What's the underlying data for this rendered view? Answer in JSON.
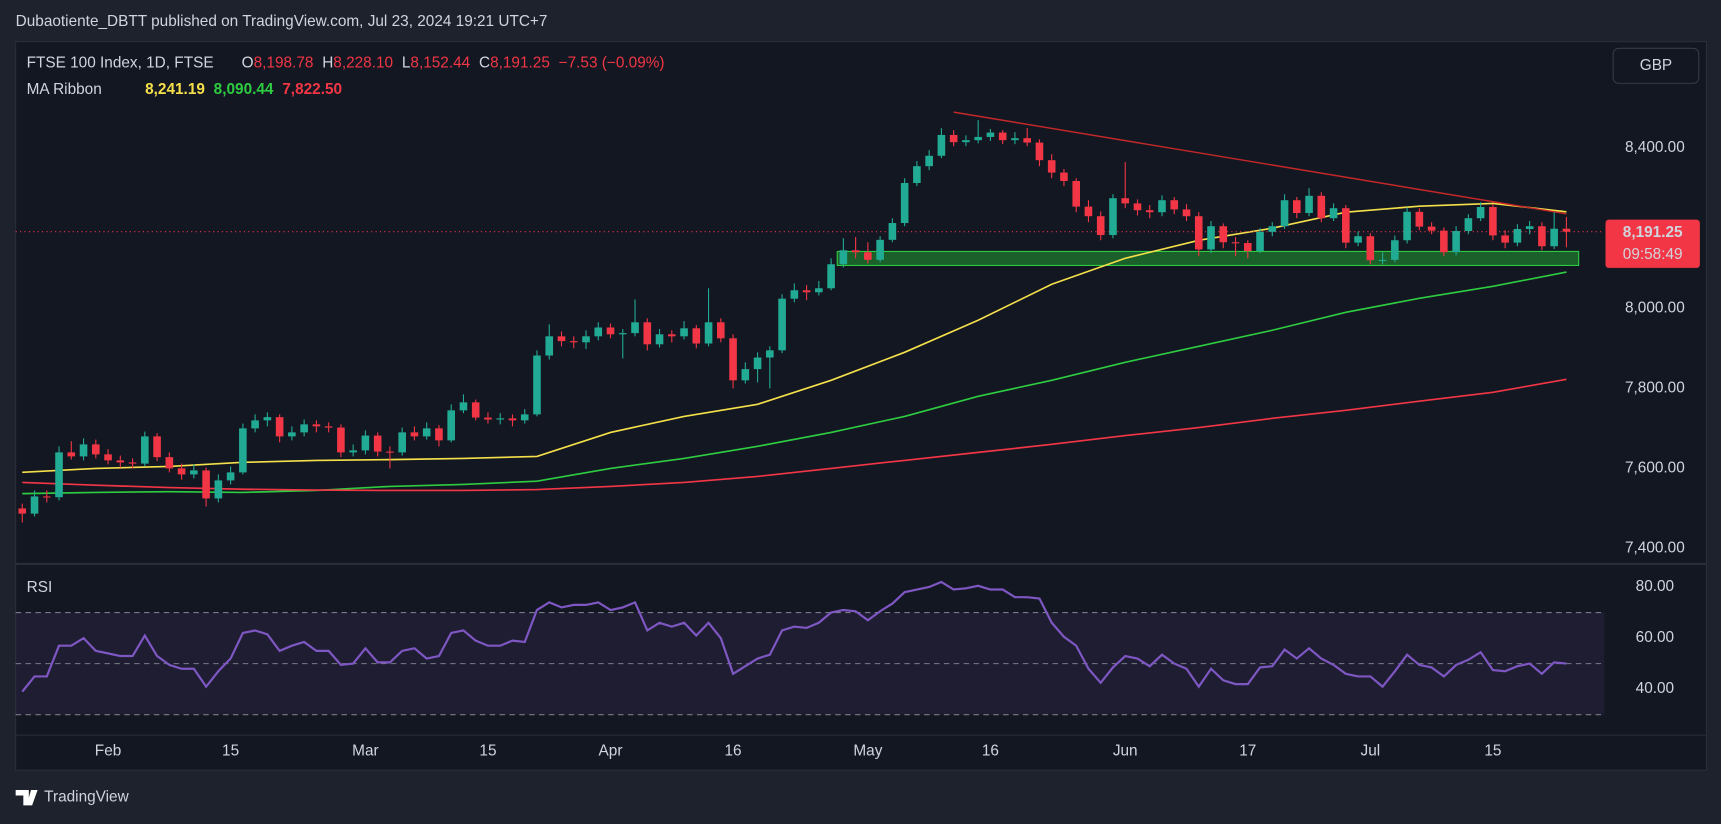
{
  "header": {
    "publisher": "Dubaotiente_DBTT published on TradingView.com, Jul 23, 2024 19:21 UTC+7",
    "logo": "TradingView"
  },
  "chart_data": [
    {
      "type": "candlestick",
      "title": "FTSE 100 Index, 1D, FTSE",
      "legend_ohlc": [
        {
          "key": "O",
          "value": "8,198.78"
        },
        {
          "key": "H",
          "value": "8,228.10"
        },
        {
          "key": "L",
          "value": "8,152.44"
        },
        {
          "key": "C",
          "value": "8,191.25"
        }
      ],
      "change": "−7.53 (−0.09%)",
      "currency": "GBP",
      "overlay_name": "MA Ribbon",
      "up_color": "#22ab94",
      "down_color": "#f23645",
      "ohlc": [
        [
          7500,
          7512,
          7465,
          7487
        ],
        [
          7487,
          7545,
          7480,
          7530
        ],
        [
          7530,
          7545,
          7515,
          7528
        ],
        [
          7528,
          7655,
          7520,
          7640
        ],
        [
          7640,
          7668,
          7622,
          7630
        ],
        [
          7630,
          7675,
          7620,
          7660
        ],
        [
          7660,
          7672,
          7625,
          7635
        ],
        [
          7635,
          7648,
          7610,
          7620
        ],
        [
          7620,
          7632,
          7602,
          7615
        ],
        [
          7615,
          7625,
          7600,
          7612
        ],
        [
          7612,
          7692,
          7605,
          7680
        ],
        [
          7680,
          7688,
          7618,
          7628
        ],
        [
          7628,
          7640,
          7590,
          7600
        ],
        [
          7600,
          7612,
          7572,
          7585
        ],
        [
          7585,
          7610,
          7575,
          7595
        ],
        [
          7595,
          7602,
          7505,
          7525
        ],
        [
          7525,
          7585,
          7515,
          7570
        ],
        [
          7570,
          7605,
          7560,
          7590
        ],
        [
          7590,
          7712,
          7585,
          7700
        ],
        [
          7700,
          7735,
          7690,
          7720
        ],
        [
          7720,
          7740,
          7705,
          7728
        ],
        [
          7728,
          7735,
          7665,
          7680
        ],
        [
          7680,
          7705,
          7670,
          7690
        ],
        [
          7690,
          7722,
          7680,
          7710
        ],
        [
          7710,
          7720,
          7690,
          7705
        ],
        [
          7705,
          7715,
          7690,
          7702
        ],
        [
          7702,
          7710,
          7628,
          7640
        ],
        [
          7640,
          7660,
          7630,
          7645
        ],
        [
          7645,
          7695,
          7635,
          7682
        ],
        [
          7682,
          7690,
          7630,
          7642
        ],
        [
          7642,
          7655,
          7600,
          7640
        ],
        [
          7640,
          7702,
          7632,
          7690
        ],
        [
          7690,
          7705,
          7670,
          7680
        ],
        [
          7680,
          7715,
          7672,
          7700
        ],
        [
          7700,
          7708,
          7655,
          7670
        ],
        [
          7670,
          7760,
          7665,
          7745
        ],
        [
          7745,
          7785,
          7738,
          7765
        ],
        [
          7765,
          7772,
          7720,
          7727
        ],
        [
          7727,
          7740,
          7712,
          7722
        ],
        [
          7722,
          7738,
          7710,
          7725
        ],
        [
          7725,
          7735,
          7705,
          7720
        ],
        [
          7720,
          7748,
          7712,
          7735
        ],
        [
          7735,
          7895,
          7730,
          7882
        ],
        [
          7882,
          7960,
          7872,
          7930
        ],
        [
          7930,
          7942,
          7905,
          7918
        ],
        [
          7918,
          7930,
          7900,
          7915
        ],
        [
          7915,
          7945,
          7898,
          7930
        ],
        [
          7930,
          7965,
          7920,
          7952
        ],
        [
          7952,
          7962,
          7925,
          7935
        ],
        [
          7935,
          7948,
          7875,
          7938
        ],
        [
          7938,
          8022,
          7930,
          7965
        ],
        [
          7965,
          7975,
          7895,
          7910
        ],
        [
          7910,
          7948,
          7902,
          7935
        ],
        [
          7935,
          7945,
          7915,
          7930
        ],
        [
          7930,
          7968,
          7922,
          7950
        ],
        [
          7950,
          7958,
          7900,
          7912
        ],
        [
          7912,
          8050,
          7905,
          7965
        ],
        [
          7965,
          7975,
          7915,
          7925
        ],
        [
          7925,
          7935,
          7800,
          7820
        ],
        [
          7820,
          7865,
          7812,
          7848
        ],
        [
          7848,
          7890,
          7815,
          7877
        ],
        [
          7877,
          7905,
          7800,
          7895
        ],
        [
          7895,
          8035,
          7888,
          8024
        ],
        [
          8024,
          8062,
          8015,
          8045
        ],
        [
          8045,
          8058,
          8020,
          8040
        ],
        [
          8040,
          8068,
          8032,
          8050
        ],
        [
          8050,
          8125,
          8045,
          8110
        ],
        [
          8110,
          8175,
          8102,
          8145
        ],
        [
          8145,
          8178,
          8125,
          8140
        ],
        [
          8140,
          8165,
          8112,
          8121
        ],
        [
          8121,
          8180,
          8115,
          8171
        ],
        [
          8171,
          8225,
          8165,
          8213
        ],
        [
          8213,
          8325,
          8205,
          8313
        ],
        [
          8313,
          8368,
          8305,
          8355
        ],
        [
          8355,
          8395,
          8345,
          8381
        ],
        [
          8381,
          8450,
          8375,
          8433
        ],
        [
          8433,
          8445,
          8405,
          8415
        ],
        [
          8415,
          8432,
          8405,
          8420
        ],
        [
          8420,
          8470,
          8412,
          8428
        ],
        [
          8428,
          8448,
          8418,
          8439
        ],
        [
          8439,
          8445,
          8410,
          8420
        ],
        [
          8420,
          8440,
          8410,
          8425
        ],
        [
          8425,
          8450,
          8405,
          8414
        ],
        [
          8414,
          8422,
          8355,
          8370
        ],
        [
          8370,
          8385,
          8325,
          8339
        ],
        [
          8339,
          8348,
          8305,
          8318
        ],
        [
          8318,
          8325,
          8240,
          8254
        ],
        [
          8254,
          8270,
          8215,
          8230
        ],
        [
          8230,
          8242,
          8170,
          8183
        ],
        [
          8183,
          8285,
          8175,
          8275
        ],
        [
          8275,
          8365,
          8250,
          8262
        ],
        [
          8262,
          8272,
          8232,
          8245
        ],
        [
          8245,
          8258,
          8225,
          8240
        ],
        [
          8240,
          8282,
          8230,
          8270
        ],
        [
          8270,
          8278,
          8235,
          8247
        ],
        [
          8247,
          8260,
          8218,
          8230
        ],
        [
          8230,
          8240,
          8130,
          8147
        ],
        [
          8147,
          8218,
          8138,
          8205
        ],
        [
          8205,
          8212,
          8150,
          8165
        ],
        [
          8165,
          8178,
          8130,
          8163
        ],
        [
          8163,
          8170,
          8125,
          8143
        ],
        [
          8143,
          8200,
          8138,
          8191
        ],
        [
          8191,
          8215,
          8180,
          8205
        ],
        [
          8205,
          8285,
          8198,
          8270
        ],
        [
          8270,
          8278,
          8225,
          8238
        ],
        [
          8238,
          8300,
          8230,
          8281
        ],
        [
          8281,
          8290,
          8215,
          8225
        ],
        [
          8225,
          8262,
          8218,
          8250
        ],
        [
          8250,
          8258,
          8150,
          8164
        ],
        [
          8164,
          8192,
          8155,
          8180
        ],
        [
          8180,
          8188,
          8110,
          8120
        ],
        [
          8120,
          8140,
          8110,
          8121
        ],
        [
          8121,
          8182,
          8115,
          8170
        ],
        [
          8170,
          8252,
          8162,
          8241
        ],
        [
          8241,
          8250,
          8195,
          8204
        ],
        [
          8204,
          8215,
          8185,
          8194
        ],
        [
          8194,
          8202,
          8130,
          8140
        ],
        [
          8140,
          8205,
          8132,
          8193
        ],
        [
          8193,
          8235,
          8185,
          8225
        ],
        [
          8225,
          8265,
          8218,
          8253
        ],
        [
          8253,
          8260,
          8170,
          8182
        ],
        [
          8182,
          8195,
          8150,
          8164
        ],
        [
          8164,
          8210,
          8155,
          8198
        ],
        [
          8198,
          8218,
          8185,
          8205
        ],
        [
          8205,
          8215,
          8145,
          8155
        ],
        [
          8155,
          8240,
          8148,
          8198.78
        ],
        [
          8198.78,
          8228.1,
          8152.44,
          8191.25
        ]
      ],
      "series": [
        {
          "color": "#f5e04a",
          "value_label": "8,241.19",
          "x": [
            0,
            6,
            12,
            18,
            24,
            30,
            36,
            42,
            48,
            54,
            60,
            66,
            72,
            78,
            84,
            90,
            96,
            102,
            108,
            114,
            120,
            126
          ],
          "values": [
            7590,
            7600,
            7605,
            7615,
            7620,
            7622,
            7625,
            7630,
            7690,
            7730,
            7760,
            7820,
            7890,
            7970,
            8060,
            8125,
            8170,
            8200,
            8240,
            8255,
            8262,
            8241.19
          ]
        },
        {
          "color": "#2ecc40",
          "value_label": "8,090.44",
          "x": [
            0,
            6,
            12,
            18,
            24,
            30,
            36,
            42,
            48,
            54,
            60,
            66,
            72,
            78,
            84,
            90,
            96,
            102,
            108,
            114,
            120,
            126
          ],
          "values": [
            7537,
            7540,
            7542,
            7540,
            7545,
            7555,
            7560,
            7568,
            7600,
            7625,
            7655,
            7690,
            7730,
            7780,
            7820,
            7865,
            7905,
            7945,
            7990,
            8025,
            8055,
            8090.44
          ]
        },
        {
          "color": "#f23645",
          "value_label": "7,822.50",
          "x": [
            0,
            6,
            12,
            18,
            24,
            30,
            36,
            42,
            48,
            54,
            60,
            66,
            72,
            78,
            84,
            90,
            96,
            102,
            108,
            114,
            120,
            126
          ],
          "values": [
            7565,
            7558,
            7552,
            7548,
            7546,
            7545,
            7545,
            7547,
            7555,
            7565,
            7580,
            7600,
            7620,
            7640,
            7660,
            7682,
            7702,
            7725,
            7745,
            7768,
            7790,
            7822.5
          ]
        }
      ],
      "trendline": {
        "color": "#c62828",
        "x": [
          76,
          126
        ],
        "values": [
          8490,
          8236
        ]
      },
      "zone": {
        "color": "#1f7a2e",
        "x": [
          66.5,
          127
        ],
        "values": [
          8107,
          8142
        ]
      },
      "last_price": {
        "value": 8191.25,
        "label": "8,191.25",
        "countdown": "09:58:49",
        "color": "#f23645"
      },
      "xlim": [
        -0.54,
        129.1
      ],
      "xticks": [
        {
          "value": 7,
          "label": "Feb"
        },
        {
          "value": 17,
          "label": "15"
        },
        {
          "value": 28,
          "label": "Mar"
        },
        {
          "value": 38,
          "label": "15"
        },
        {
          "value": 48,
          "label": "Apr"
        },
        {
          "value": 58,
          "label": "16"
        },
        {
          "value": 69,
          "label": "May"
        },
        {
          "value": 79,
          "label": "16"
        },
        {
          "value": 90,
          "label": "Jun"
        },
        {
          "value": 100,
          "label": "17"
        },
        {
          "value": 110,
          "label": "Jul"
        },
        {
          "value": 120,
          "label": "15"
        }
      ],
      "ylim": [
        7364,
        8666
      ],
      "yticks": [
        {
          "value": 8400,
          "label": "8,400.00"
        },
        {
          "value": 8000,
          "label": "8,000.00"
        },
        {
          "value": 7800,
          "label": "7,800.00"
        },
        {
          "value": 7600,
          "label": "7,600.00"
        },
        {
          "value": 7400,
          "label": "7,400.00"
        }
      ]
    },
    {
      "type": "line",
      "title": "RSI",
      "color": "#7e57c2",
      "values": [
        39,
        45,
        45,
        57,
        57,
        60,
        55,
        54,
        53,
        53,
        61,
        53,
        49.5,
        48,
        48,
        41,
        47,
        52,
        62,
        63,
        61.5,
        55,
        57,
        58.5,
        55,
        55,
        49.5,
        50,
        56,
        50.5,
        50.5,
        55,
        56,
        52,
        53,
        62,
        63,
        59,
        57,
        57,
        59,
        58.5,
        71,
        74,
        72,
        73,
        73,
        74,
        71,
        72,
        74,
        63,
        66,
        64.5,
        66,
        61,
        66,
        60,
        46,
        49,
        52,
        53.5,
        63,
        64.5,
        64,
        66,
        70,
        71,
        70.5,
        67,
        70.5,
        73.5,
        78,
        79,
        80,
        82,
        79,
        79.5,
        80.5,
        79,
        79,
        76,
        76,
        75.5,
        66,
        60.5,
        57,
        48,
        42.5,
        48.5,
        53,
        52,
        49,
        53.5,
        50,
        48,
        41,
        48,
        43.5,
        42,
        42,
        48.5,
        49,
        55.5,
        52,
        56,
        52,
        49.5,
        46,
        45,
        45,
        41,
        47,
        53.5,
        49.5,
        48.5,
        45,
        49.5,
        51.5,
        54.5,
        47.5,
        47,
        49,
        50,
        46,
        50.5,
        50
      ],
      "ylim": [
        22,
        88.6
      ],
      "yticks": [
        {
          "value": 80,
          "label": "80.00"
        },
        {
          "value": 60,
          "label": "60.00"
        },
        {
          "value": 40,
          "label": "40.00"
        }
      ],
      "levels": [
        70,
        50,
        30
      ],
      "band": [
        30,
        70
      ],
      "band_color": "#7e57c2"
    }
  ]
}
